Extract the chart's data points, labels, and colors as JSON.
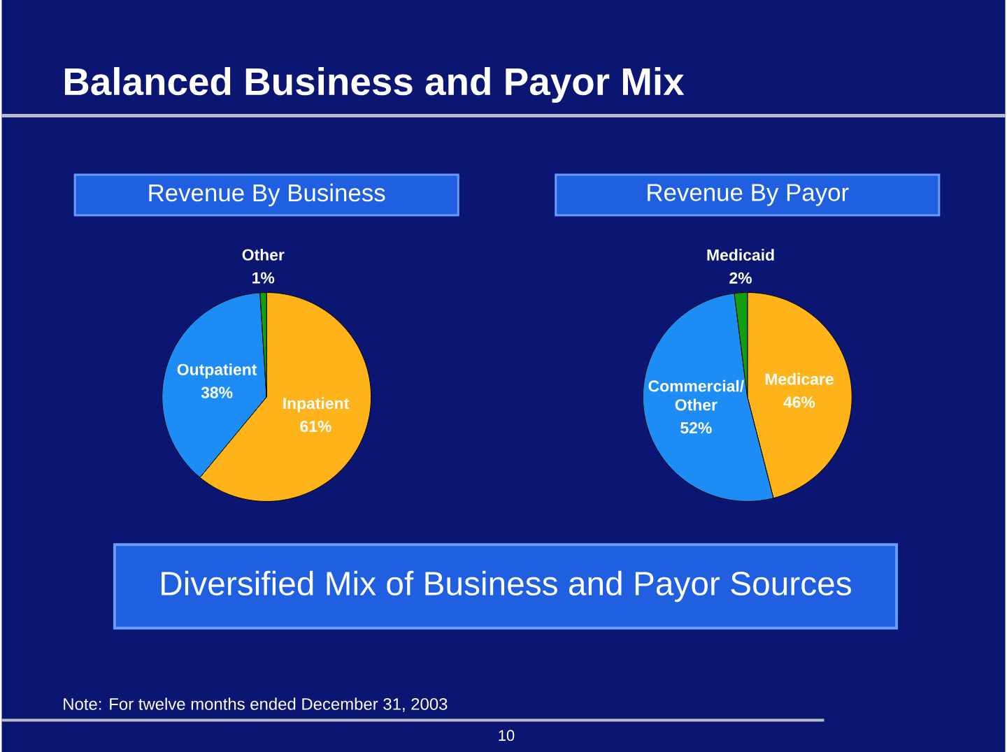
{
  "chart_data": [
    {
      "type": "other",
      "title": "Balanced Business and Payor Mix",
      "annotations": [
        "Diversified Mix of Business and Payor Sources",
        "Note: For twelve months ended December 31, 2003",
        "10"
      ]
    },
    {
      "type": "pie",
      "title": "Revenue By Business",
      "categories": [
        "Inpatient",
        "Outpatient",
        "Other"
      ],
      "values": [
        61,
        38,
        1
      ],
      "value_labels": [
        "61%",
        "38%",
        "1%"
      ],
      "colors": [
        "#ffb31a",
        "#1e8cf5",
        "#12a012"
      ]
    },
    {
      "type": "pie",
      "title": "Revenue By Payor",
      "categories": [
        "Medicare",
        "Commercial/ Other",
        "Medicaid"
      ],
      "values": [
        46,
        52,
        2
      ],
      "value_labels": [
        "46%",
        "52%",
        "2%"
      ],
      "colors": [
        "#ffb31a",
        "#1e8cf5",
        "#12a012"
      ]
    }
  ]
}
